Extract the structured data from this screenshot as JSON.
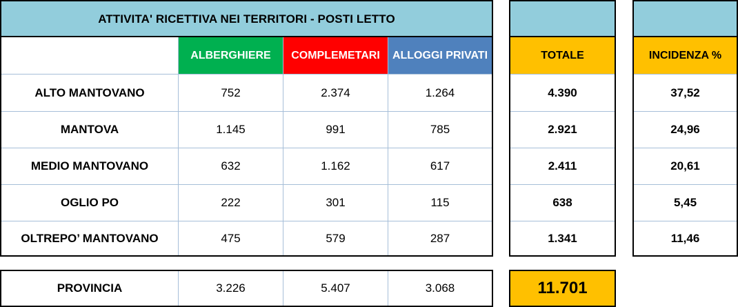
{
  "main_table": {
    "title": "ATTIVITA' RICETTIVA NEI TERRITORI - POSTI LETTO",
    "columns": [
      {
        "label": "ALBERGHIERE",
        "color": "#00b050"
      },
      {
        "label": "COMPLEMETARI",
        "color": "#ff0000"
      },
      {
        "label": "ALLOGGI PRIVATI",
        "color": "#4f81bd"
      }
    ],
    "rows": [
      {
        "name": "ALTO MANTOVANO",
        "values": [
          "752",
          "2.374",
          "1.264"
        ]
      },
      {
        "name": "MANTOVA",
        "values": [
          "1.145",
          "991",
          "785"
        ]
      },
      {
        "name": "MEDIO MANTOVANO",
        "values": [
          "632",
          "1.162",
          "617"
        ]
      },
      {
        "name": "OGLIO PO",
        "values": [
          "222",
          "301",
          "115"
        ]
      },
      {
        "name": "OLTREPO’ MANTOVANO",
        "values": [
          "475",
          "579",
          "287"
        ]
      }
    ]
  },
  "totale": {
    "header": "TOTALE",
    "values": [
      "4.390",
      "2.921",
      "2.411",
      "638",
      "1.341"
    ]
  },
  "incidenza": {
    "header": "INCIDENZA %",
    "values": [
      "37,52",
      "24,96",
      "20,61",
      "5,45",
      "11,46"
    ]
  },
  "provincia": {
    "name": "PROVINCIA",
    "values": [
      "3.226",
      "5.407",
      "3.068"
    ],
    "total": "11.701"
  },
  "colors": {
    "header_bar": "#92cddc",
    "total_highlight": "#ffc000",
    "grid_line": "#a6bed8"
  }
}
